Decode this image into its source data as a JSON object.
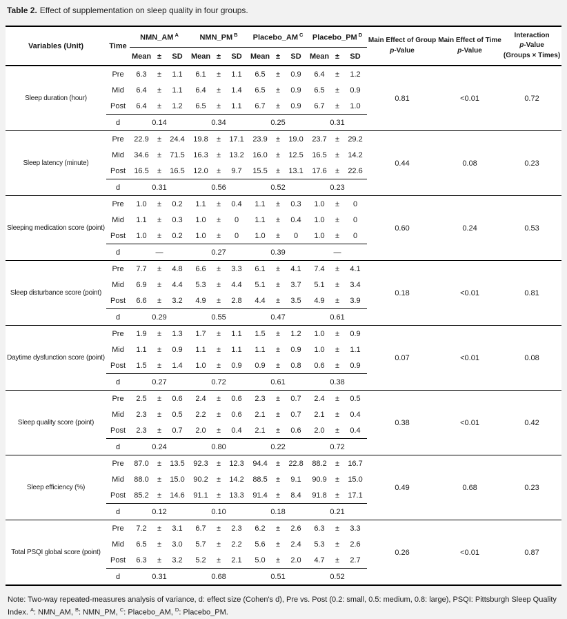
{
  "page": {
    "title_bold": "Table 2.",
    "title_rest": "Effect of supplementation on sleep quality in four groups."
  },
  "table": {
    "pm": "±",
    "d_label": "d",
    "header": {
      "variables": "Variables (Unit)",
      "time": "Time",
      "mean": "Mean",
      "pm": "±",
      "sd": "SD",
      "groups": [
        {
          "name": "NMN_AM",
          "sup": "A"
        },
        {
          "name": "NMN_PM",
          "sup": "B"
        },
        {
          "name": "Placebo_AM",
          "sup": "C"
        },
        {
          "name": "Placebo_PM",
          "sup": "D"
        }
      ],
      "p_group_title": "Main Effect of Group",
      "p_time_title": "Main Effect of Time",
      "interaction_title": "Interaction",
      "interaction_sub": "(Groups × Times)",
      "p_italic": "p",
      "p_suffix": "-Value"
    },
    "variables": [
      {
        "name": "Sleep duration (hour)",
        "rows": [
          {
            "time": "Pre",
            "values": [
              [
                "6.3",
                "1.1"
              ],
              [
                "6.1",
                "1.1"
              ],
              [
                "6.5",
                "0.9"
              ],
              [
                "6.4",
                "1.2"
              ]
            ]
          },
          {
            "time": "Mid",
            "values": [
              [
                "6.4",
                "1.1"
              ],
              [
                "6.4",
                "1.4"
              ],
              [
                "6.5",
                "0.9"
              ],
              [
                "6.5",
                "0.9"
              ]
            ]
          },
          {
            "time": "Post",
            "values": [
              [
                "6.4",
                "1.2"
              ],
              [
                "6.5",
                "1.1"
              ],
              [
                "6.7",
                "0.9"
              ],
              [
                "6.7",
                "1.0"
              ]
            ]
          }
        ],
        "d": [
          "0.14",
          "0.34",
          "0.25",
          "0.31"
        ],
        "p_group": "0.81",
        "p_time": "<0.01",
        "p_interaction": "0.72"
      },
      {
        "name": "Sleep latency (minute)",
        "rows": [
          {
            "time": "Pre",
            "values": [
              [
                "22.9",
                "24.4"
              ],
              [
                "19.8",
                "17.1"
              ],
              [
                "23.9",
                "19.0"
              ],
              [
                "23.7",
                "29.2"
              ]
            ]
          },
          {
            "time": "Mid",
            "values": [
              [
                "34.6",
                "71.5"
              ],
              [
                "16.3",
                "13.2"
              ],
              [
                "16.0",
                "12.5"
              ],
              [
                "16.5",
                "14.2"
              ]
            ]
          },
          {
            "time": "Post",
            "values": [
              [
                "16.5",
                "16.5"
              ],
              [
                "12.0",
                "9.7"
              ],
              [
                "15.5",
                "13.1"
              ],
              [
                "17.6",
                "22.6"
              ]
            ]
          }
        ],
        "d": [
          "0.31",
          "0.56",
          "0.52",
          "0.23"
        ],
        "p_group": "0.44",
        "p_time": "0.08",
        "p_interaction": "0.23"
      },
      {
        "name": "Sleeping medication score (point)",
        "rows": [
          {
            "time": "Pre",
            "values": [
              [
                "1.0",
                "0.2"
              ],
              [
                "1.1",
                "0.4"
              ],
              [
                "1.1",
                "0.3"
              ],
              [
                "1.0",
                "0"
              ]
            ]
          },
          {
            "time": "Mid",
            "values": [
              [
                "1.1",
                "0.3"
              ],
              [
                "1.0",
                "0"
              ],
              [
                "1.1",
                "0.4"
              ],
              [
                "1.0",
                "0"
              ]
            ]
          },
          {
            "time": "Post",
            "values": [
              [
                "1.0",
                "0.2"
              ],
              [
                "1.0",
                "0"
              ],
              [
                "1.0",
                "0"
              ],
              [
                "1.0",
                "0"
              ]
            ]
          }
        ],
        "d": [
          "—",
          "0.27",
          "0.39",
          "—"
        ],
        "p_group": "0.60",
        "p_time": "0.24",
        "p_interaction": "0.53"
      },
      {
        "name": "Sleep disturbance score (point)",
        "rows": [
          {
            "time": "Pre",
            "values": [
              [
                "7.7",
                "4.8"
              ],
              [
                "6.6",
                "3.3"
              ],
              [
                "6.1",
                "4.1"
              ],
              [
                "7.4",
                "4.1"
              ]
            ]
          },
          {
            "time": "Mid",
            "values": [
              [
                "6.9",
                "4.4"
              ],
              [
                "5.3",
                "4.4"
              ],
              [
                "5.1",
                "3.7"
              ],
              [
                "5.1",
                "3.4"
              ]
            ]
          },
          {
            "time": "Post",
            "values": [
              [
                "6.6",
                "3.2"
              ],
              [
                "4.9",
                "2.8"
              ],
              [
                "4.4",
                "3.5"
              ],
              [
                "4.9",
                "3.9"
              ]
            ]
          }
        ],
        "d": [
          "0.29",
          "0.55",
          "0.47",
          "0.61"
        ],
        "p_group": "0.18",
        "p_time": "<0.01",
        "p_interaction": "0.81"
      },
      {
        "name": "Daytime dysfunction score (point)",
        "rows": [
          {
            "time": "Pre",
            "values": [
              [
                "1.9",
                "1.3"
              ],
              [
                "1.7",
                "1.1"
              ],
              [
                "1.5",
                "1.2"
              ],
              [
                "1.0",
                "0.9"
              ]
            ]
          },
          {
            "time": "Mid",
            "values": [
              [
                "1.1",
                "0.9"
              ],
              [
                "1.1",
                "1.1"
              ],
              [
                "1.1",
                "0.9"
              ],
              [
                "1.0",
                "1.1"
              ]
            ]
          },
          {
            "time": "Post",
            "values": [
              [
                "1.5",
                "1.4"
              ],
              [
                "1.0",
                "0.9"
              ],
              [
                "0.9",
                "0.8"
              ],
              [
                "0.6",
                "0.9"
              ]
            ]
          }
        ],
        "d": [
          "0.27",
          "0.72",
          "0.61",
          "0.38"
        ],
        "p_group": "0.07",
        "p_time": "<0.01",
        "p_interaction": "0.08"
      },
      {
        "name": "Sleep quality score (point)",
        "rows": [
          {
            "time": "Pre",
            "values": [
              [
                "2.5",
                "0.6"
              ],
              [
                "2.4",
                "0.6"
              ],
              [
                "2.3",
                "0.7"
              ],
              [
                "2.4",
                "0.5"
              ]
            ]
          },
          {
            "time": "Mid",
            "values": [
              [
                "2.3",
                "0.5"
              ],
              [
                "2.2",
                "0.6"
              ],
              [
                "2.1",
                "0.7"
              ],
              [
                "2.1",
                "0.4"
              ]
            ]
          },
          {
            "time": "Post",
            "values": [
              [
                "2.3",
                "0.7"
              ],
              [
                "2.0",
                "0.4"
              ],
              [
                "2.1",
                "0.6"
              ],
              [
                "2.0",
                "0.4"
              ]
            ]
          }
        ],
        "d": [
          "0.24",
          "0.80",
          "0.22",
          "0.72"
        ],
        "p_group": "0.38",
        "p_time": "<0.01",
        "p_interaction": "0.42"
      },
      {
        "name": "Sleep efficiency (%)",
        "rows": [
          {
            "time": "Pre",
            "values": [
              [
                "87.0",
                "13.5"
              ],
              [
                "92.3",
                "12.3"
              ],
              [
                "94.4",
                "22.8"
              ],
              [
                "88.2",
                "16.7"
              ]
            ]
          },
          {
            "time": "Mid",
            "values": [
              [
                "88.0",
                "15.0"
              ],
              [
                "90.2",
                "14.2"
              ],
              [
                "88.5",
                "9.1"
              ],
              [
                "90.9",
                "15.0"
              ]
            ]
          },
          {
            "time": "Post",
            "values": [
              [
                "85.2",
                "14.6"
              ],
              [
                "91.1",
                "13.3"
              ],
              [
                "91.4",
                "8.4"
              ],
              [
                "91.8",
                "17.1"
              ]
            ]
          }
        ],
        "d": [
          "0.12",
          "0.10",
          "0.18",
          "0.21"
        ],
        "p_group": "0.49",
        "p_time": "0.68",
        "p_interaction": "0.23"
      },
      {
        "name": "Total PSQI global score (point)",
        "rows": [
          {
            "time": "Pre",
            "values": [
              [
                "7.2",
                "3.1"
              ],
              [
                "6.7",
                "2.3"
              ],
              [
                "6.2",
                "2.6"
              ],
              [
                "6.3",
                "3.3"
              ]
            ]
          },
          {
            "time": "Mid",
            "values": [
              [
                "6.5",
                "3.0"
              ],
              [
                "5.7",
                "2.2"
              ],
              [
                "5.6",
                "2.4"
              ],
              [
                "5.3",
                "2.6"
              ]
            ]
          },
          {
            "time": "Post",
            "values": [
              [
                "6.3",
                "3.2"
              ],
              [
                "5.2",
                "2.1"
              ],
              [
                "5.0",
                "2.0"
              ],
              [
                "4.7",
                "2.7"
              ]
            ]
          }
        ],
        "d": [
          "0.31",
          "0.68",
          "0.51",
          "0.52"
        ],
        "p_group": "0.26",
        "p_time": "<0.01",
        "p_interaction": "0.87"
      }
    ]
  },
  "note": {
    "text": "Note: Two-way repeated-measures analysis of variance, d: effect size (Cohen's d), Pre vs. Post (0.2: small, 0.5: medium, 0.8: large), PSQI: Pittsburgh Sleep Quality Index.",
    "abbrev": [
      {
        "sup": "A",
        "label": ": NMN_AM, "
      },
      {
        "sup": "B",
        "label": ": NMN_PM, "
      },
      {
        "sup": "C",
        "label": ": Placebo_AM, "
      },
      {
        "sup": "D",
        "label": ": Placebo_PM."
      }
    ]
  }
}
